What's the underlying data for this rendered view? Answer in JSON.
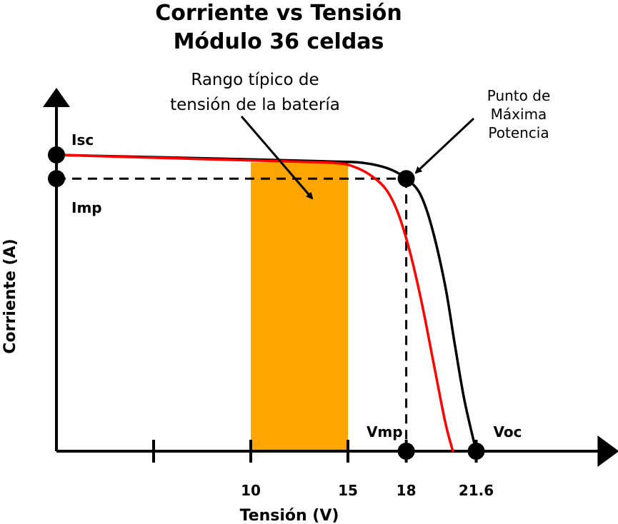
{
  "chart_data": {
    "type": "line",
    "title": "Corriente vs Tensión",
    "subtitle": "Módulo 36 celdas",
    "xlabel": "Tensión (V)",
    "ylabel": "Corriente (A)",
    "xlim": [
      0,
      27
    ],
    "ylim": [
      0,
      1.2
    ],
    "x_ticks": [
      5,
      10,
      15,
      18,
      21.6
    ],
    "x_tick_labels": [
      "",
      "10",
      "15",
      "18",
      "21.6"
    ],
    "shaded_range": {
      "x": [
        10,
        15
      ],
      "color": "#FFA500"
    },
    "series": [
      {
        "color": "#000000",
        "x": [
          0,
          10,
          14,
          15.5,
          16.5,
          17.3,
          18,
          18.7,
          19.3,
          20,
          20.5,
          21,
          21.6
        ],
        "y": [
          1.0,
          0.985,
          0.978,
          0.975,
          0.965,
          0.948,
          0.92,
          0.87,
          0.76,
          0.56,
          0.36,
          0.17,
          0.0
        ]
      },
      {
        "color": "#FF0000",
        "x": [
          0,
          8,
          12,
          14.5,
          15.5,
          16.3,
          17,
          17.6,
          18.2,
          18.8,
          19.4,
          20,
          20.4
        ],
        "y": [
          1.0,
          0.985,
          0.978,
          0.972,
          0.955,
          0.925,
          0.88,
          0.8,
          0.67,
          0.5,
          0.3,
          0.1,
          0.0
        ]
      }
    ],
    "points": [
      {
        "name": "Isc",
        "x": 0,
        "y": 1.0
      },
      {
        "name": "Imp",
        "x": 0,
        "y": 0.92
      },
      {
        "name": "Vmp",
        "x": 18,
        "y": 0
      },
      {
        "name": "Voc",
        "x": 21.6,
        "y": 0
      },
      {
        "name": "mpp",
        "x": 18,
        "y": 0.92
      }
    ],
    "annotations": {
      "battery_range": [
        "Rango típico de",
        "tensión de la batería"
      ],
      "mpp": [
        "Punto de",
        "Máxima",
        "Potencia"
      ]
    },
    "grid": false,
    "legend": "none"
  }
}
